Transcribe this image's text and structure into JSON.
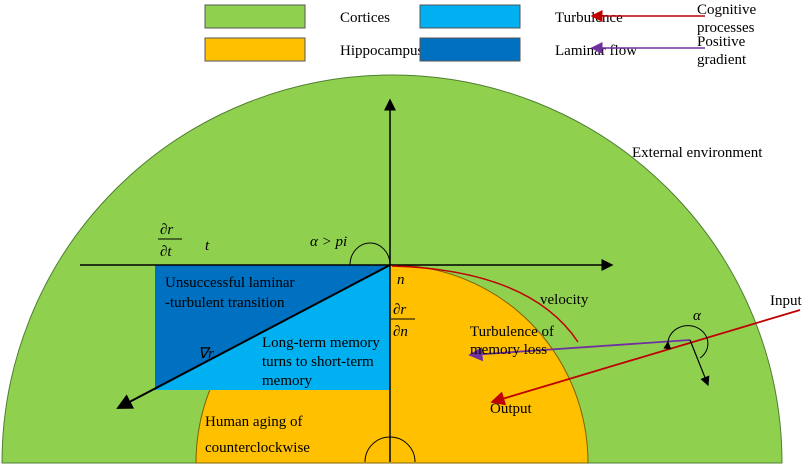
{
  "legend": {
    "items": [
      {
        "label": "Cortices",
        "color": "#8fd14f"
      },
      {
        "label": "Hippocampus",
        "color": "#ffc000"
      },
      {
        "label": "Turbulence",
        "color": "#00b0f0"
      },
      {
        "label": "Laminar flow",
        "color": "#0070c0"
      }
    ],
    "arrows": [
      {
        "label": [
          "Cognitive",
          "processes"
        ],
        "color": "#c00000"
      },
      {
        "label": [
          "Positive",
          "gradient"
        ],
        "color": "#7030a0"
      }
    ]
  },
  "labels": {
    "external": "External environment",
    "input": "Input",
    "output": "Output",
    "velocity": "velocity",
    "turbulence": [
      "Turbulence of",
      "memory loss"
    ],
    "alpha": "α",
    "alpha_pi": "α > pi",
    "laminar": [
      "Unsuccessful laminar",
      "-turbulent transition"
    ],
    "longterm": [
      "Long-term memory",
      "turns to short-term",
      "memory"
    ],
    "grad": "∇r",
    "aging": [
      "Human aging of",
      "counterclockwise"
    ],
    "dr": "∂r",
    "dt": "∂t⃗",
    "t": "t⃗",
    "n": "n⃗",
    "dn": "∂n⃗"
  }
}
